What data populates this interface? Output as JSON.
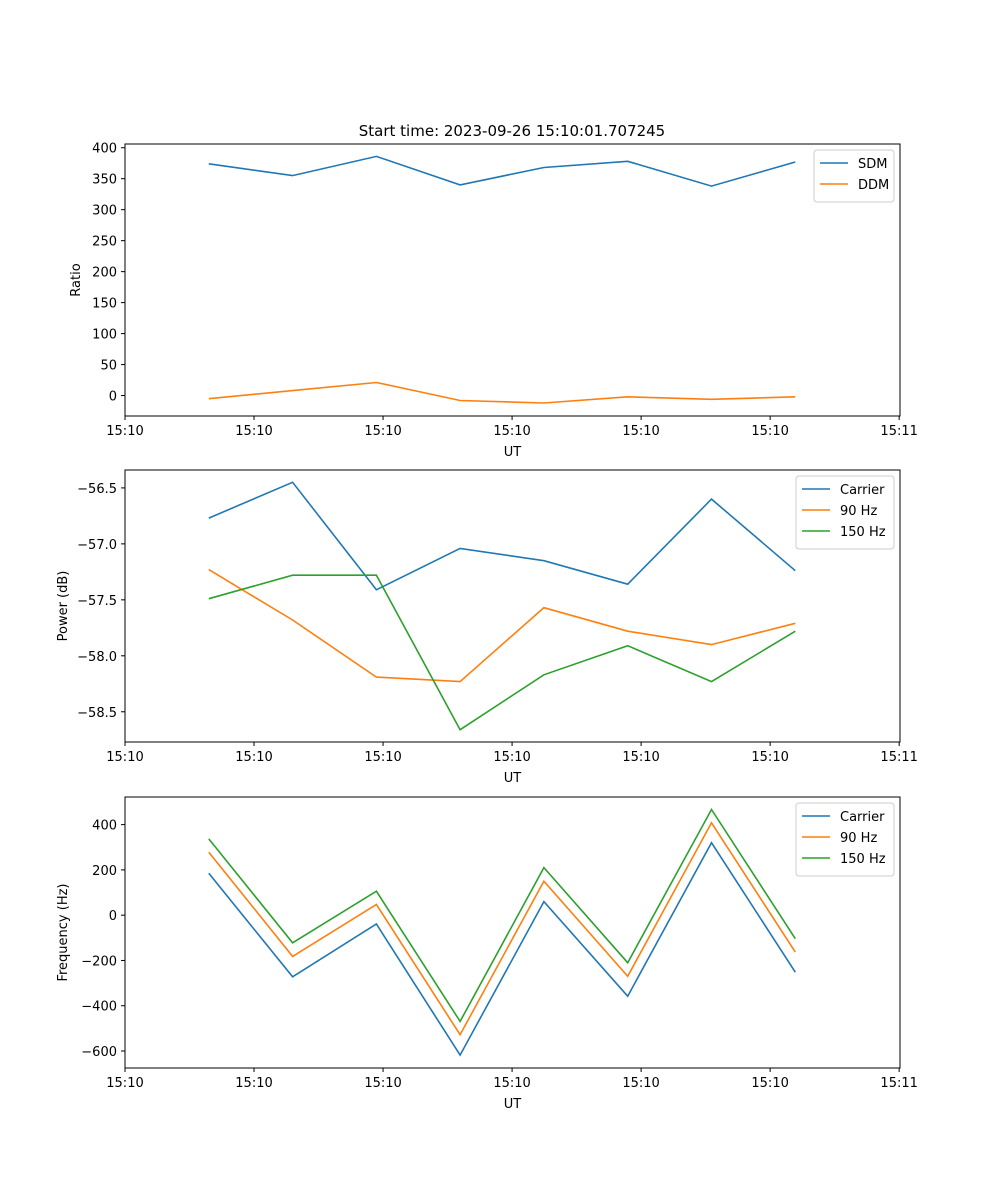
{
  "figure_title": "Start time: 2023-09-26 15:10:01.707245",
  "colors": {
    "blue": "#1f77b4",
    "orange": "#ff7f0e",
    "green": "#2ca02c"
  },
  "chart_data": [
    {
      "type": "line",
      "title": "Start time: 2023-09-26 15:10:01.707245",
      "xlabel": "UT",
      "ylabel": "Ratio",
      "xlim": [
        0,
        9.25
      ],
      "x": [
        1,
        2,
        3,
        4,
        5,
        6,
        7,
        8
      ],
      "xtick_positions": [
        0,
        1.54,
        3.08,
        4.62,
        6.16,
        7.7,
        9.24
      ],
      "xtick_labels": [
        "15:10",
        "15:10",
        "15:10",
        "15:10",
        "15:10",
        "15:10",
        "15:11"
      ],
      "ylim": [
        -33,
        406
      ],
      "yticks": [
        0,
        50,
        100,
        150,
        200,
        250,
        300,
        350,
        400
      ],
      "legend_loc": "upper right",
      "series": [
        {
          "name": "SDM",
          "color": "#1f77b4",
          "values": [
            374,
            355,
            386,
            340,
            368,
            378,
            338,
            377
          ]
        },
        {
          "name": "DDM",
          "color": "#ff7f0e",
          "values": [
            -5,
            8,
            21,
            -8,
            -12,
            -2,
            -6,
            -2
          ]
        }
      ]
    },
    {
      "type": "line",
      "title": "",
      "xlabel": "UT",
      "ylabel": "Power (dB)",
      "xlim": [
        0,
        9.25
      ],
      "x": [
        1,
        2,
        3,
        4,
        5,
        6,
        7,
        8
      ],
      "xtick_positions": [
        0,
        1.54,
        3.08,
        4.62,
        6.16,
        7.7,
        9.24
      ],
      "xtick_labels": [
        "15:10",
        "15:10",
        "15:10",
        "15:10",
        "15:10",
        "15:10",
        "15:11"
      ],
      "ylim": [
        -58.77,
        -56.34
      ],
      "yticks": [
        -58.5,
        -58.0,
        -57.5,
        -57.0,
        -56.5
      ],
      "ytick_labels": [
        "−58.5",
        "−58.0",
        "−57.5",
        "−57.0",
        "−56.5"
      ],
      "legend_loc": "upper right",
      "series": [
        {
          "name": "Carrier",
          "color": "#1f77b4",
          "values": [
            -56.77,
            -56.45,
            -57.41,
            -57.04,
            -57.15,
            -57.36,
            -56.6,
            -57.24
          ]
        },
        {
          "name": "90 Hz",
          "color": "#ff7f0e",
          "values": [
            -57.23,
            -57.68,
            -58.19,
            -58.23,
            -57.57,
            -57.78,
            -57.9,
            -57.71
          ]
        },
        {
          "name": "150 Hz",
          "color": "#2ca02c",
          "values": [
            -57.49,
            -57.28,
            -57.28,
            -58.66,
            -58.17,
            -57.91,
            -58.23,
            -57.78
          ]
        }
      ]
    },
    {
      "type": "line",
      "title": "",
      "xlabel": "UT",
      "ylabel": "Frequency (Hz)",
      "xlim": [
        0,
        9.25
      ],
      "x": [
        1,
        2,
        3,
        4,
        5,
        6,
        7,
        8
      ],
      "xtick_positions": [
        0,
        1.54,
        3.08,
        4.62,
        6.16,
        7.7,
        9.24
      ],
      "xtick_labels": [
        "15:10",
        "15:10",
        "15:10",
        "15:10",
        "15:10",
        "15:10",
        "15:11"
      ],
      "ylim": [
        -675,
        522
      ],
      "yticks": [
        -600,
        -400,
        -200,
        0,
        200,
        400
      ],
      "ytick_labels": [
        "−600",
        "−400",
        "−200",
        "0",
        "200",
        "400"
      ],
      "legend_loc": "upper right",
      "series": [
        {
          "name": "Carrier",
          "color": "#1f77b4",
          "values": [
            185,
            -272,
            -39,
            -618,
            60,
            -358,
            320,
            -252
          ]
        },
        {
          "name": "90 Hz",
          "color": "#ff7f0e",
          "values": [
            278,
            -182,
            47,
            -528,
            150,
            -270,
            408,
            -163
          ]
        },
        {
          "name": "150 Hz",
          "color": "#2ca02c",
          "values": [
            337,
            -122,
            106,
            -469,
            210,
            -210,
            467,
            -104
          ]
        }
      ]
    }
  ]
}
